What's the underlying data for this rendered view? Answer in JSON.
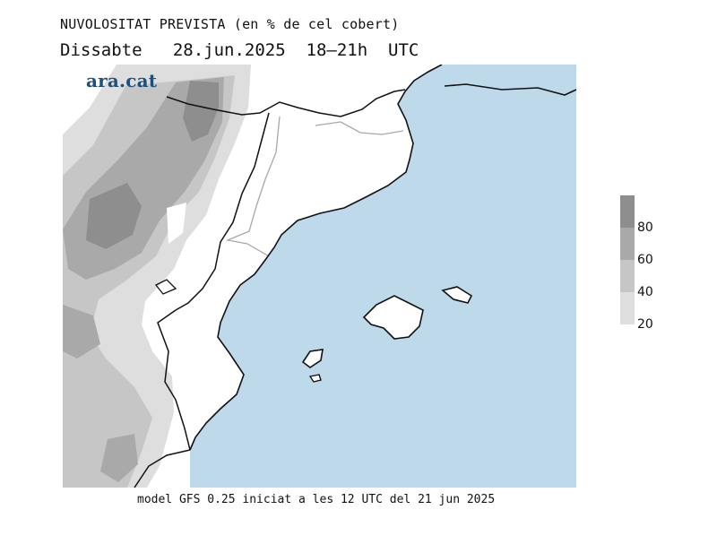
{
  "title": "NUVOLOSITAT PREVISTA (en % de cel cobert)",
  "subtitle": "Dissabte   28.jun.2025  18–21h  UTC",
  "brand": "ara.cat",
  "footer": "model GFS 0.25 iniciat a les 12 UTC del 21 jun 2025",
  "colors": {
    "sea": "#bdd9ea",
    "land": "#ffffff",
    "coast": "#111111",
    "internal_border": "#a8a8a8",
    "cloud_20_40": "#dedede",
    "cloud_40_60": "#c6c6c6",
    "cloud_60_80": "#a9a9a9",
    "cloud_80_100": "#8e8e8e"
  },
  "legend": {
    "levels": [
      {
        "label": "80",
        "color": "#8e8e8e"
      },
      {
        "label": "60",
        "color": "#a9a9a9"
      },
      {
        "label": "40",
        "color": "#c6c6c6"
      },
      {
        "label": "20",
        "color": "#dedede"
      }
    ]
  },
  "chart_data": {
    "type": "heatmap",
    "variable": "cloud cover (% of sky covered)",
    "contour_levels": [
      20,
      40,
      60,
      80
    ],
    "max_shown": 100,
    "region": "Catalonia, Valencia and Balearic Islands",
    "valid_time": "2025-06-28 18–21 UTC",
    "model": "GFS 0.25",
    "init_time": "2025-06-21 12 UTC"
  }
}
